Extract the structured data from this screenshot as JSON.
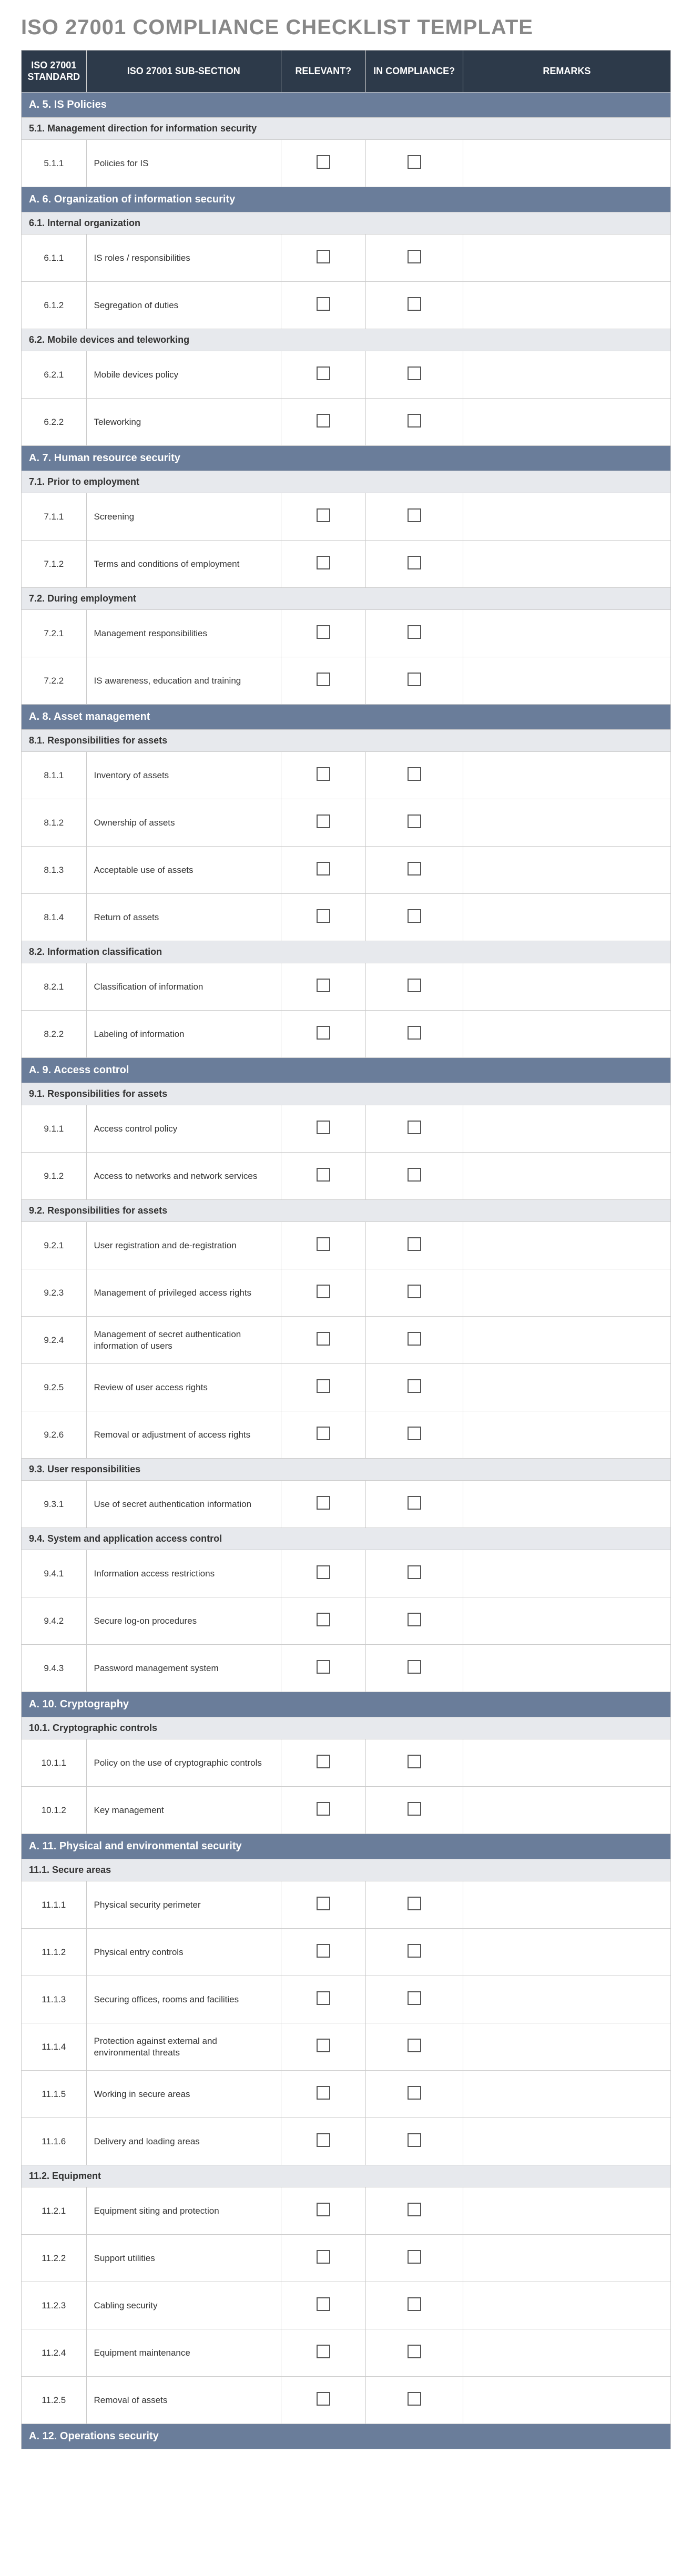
{
  "title": "ISO 27001 COMPLIANCE CHECKLIST TEMPLATE",
  "columns": {
    "std": "ISO 27001 STANDARD",
    "sub": "ISO 27001 SUB-SECTION",
    "rel": "RELEVANT?",
    "comp": "IN COMPLIANCE?",
    "rem": "REMARKS"
  },
  "colors": {
    "header_bg": "#2d3a4a",
    "section_bg": "#6a7d9a",
    "subsection_bg": "#e7e9ed",
    "title_color": "#888888",
    "border": "#cccccc"
  },
  "sections": [
    {
      "title": "A. 5. IS Policies",
      "subsections": [
        {
          "title": "5.1. Management direction for information security",
          "rows": [
            {
              "std": "5.1.1",
              "sub": "Policies for IS",
              "rem": ""
            }
          ]
        }
      ]
    },
    {
      "title": "A. 6. Organization of information security",
      "subsections": [
        {
          "title": "6.1. Internal organization",
          "rows": [
            {
              "std": "6.1.1",
              "sub": "IS roles / responsibilities",
              "rem": ""
            },
            {
              "std": "6.1.2",
              "sub": "Segregation of duties",
              "rem": ""
            }
          ]
        },
        {
          "title": "6.2. Mobile devices and teleworking",
          "rows": [
            {
              "std": "6.2.1",
              "sub": "Mobile devices policy",
              "rem": ""
            },
            {
              "std": "6.2.2",
              "sub": "Teleworking",
              "rem": ""
            }
          ]
        }
      ]
    },
    {
      "title": "A. 7. Human resource security",
      "subsections": [
        {
          "title": "7.1. Prior to employment",
          "rows": [
            {
              "std": "7.1.1",
              "sub": "Screening",
              "rem": ""
            },
            {
              "std": "7.1.2",
              "sub": "Terms and conditions of employment",
              "rem": ""
            }
          ]
        },
        {
          "title": "7.2. During employment",
          "rows": [
            {
              "std": "7.2.1",
              "sub": "Management responsibilities",
              "rem": ""
            },
            {
              "std": "7.2.2",
              "sub": "IS awareness, education and training",
              "rem": ""
            }
          ]
        }
      ]
    },
    {
      "title": "A. 8. Asset management",
      "subsections": [
        {
          "title": "8.1. Responsibilities for assets",
          "rows": [
            {
              "std": "8.1.1",
              "sub": "Inventory of assets",
              "rem": ""
            },
            {
              "std": "8.1.2",
              "sub": "Ownership of assets",
              "rem": ""
            },
            {
              "std": "8.1.3",
              "sub": "Acceptable use of assets",
              "rem": ""
            },
            {
              "std": "8.1.4",
              "sub": "Return of assets",
              "rem": ""
            }
          ]
        },
        {
          "title": "8.2. Information classification",
          "rows": [
            {
              "std": "8.2.1",
              "sub": "Classification of information",
              "rem": ""
            },
            {
              "std": "8.2.2",
              "sub": "Labeling of information",
              "rem": ""
            }
          ]
        }
      ]
    },
    {
      "title": "A. 9. Access control",
      "subsections": [
        {
          "title": "9.1. Responsibilities for assets",
          "rows": [
            {
              "std": "9.1.1",
              "sub": "Access control policy",
              "rem": ""
            },
            {
              "std": "9.1.2",
              "sub": "Access to networks and network services",
              "rem": ""
            }
          ]
        },
        {
          "title": "9.2. Responsibilities for assets",
          "rows": [
            {
              "std": "9.2.1",
              "sub": "User registration and de-registration",
              "rem": ""
            },
            {
              "std": "9.2.3",
              "sub": "Management of privileged access rights",
              "rem": ""
            },
            {
              "std": "9.2.4",
              "sub": "Management of secret authentication information of users",
              "rem": ""
            },
            {
              "std": "9.2.5",
              "sub": "Review of user access rights",
              "rem": ""
            },
            {
              "std": "9.2.6",
              "sub": "Removal or adjustment of access rights",
              "rem": ""
            }
          ]
        },
        {
          "title": "9.3. User responsibilities",
          "rows": [
            {
              "std": "9.3.1",
              "sub": "Use of secret authentication information",
              "rem": ""
            }
          ]
        },
        {
          "title": "9.4. System and application access control",
          "rows": [
            {
              "std": "9.4.1",
              "sub": "Information access restrictions",
              "rem": ""
            },
            {
              "std": "9.4.2",
              "sub": "Secure log-on procedures",
              "rem": ""
            },
            {
              "std": "9.4.3",
              "sub": "Password management system",
              "rem": ""
            }
          ]
        }
      ]
    },
    {
      "title": "A. 10. Cryptography",
      "subsections": [
        {
          "title": "10.1. Cryptographic controls",
          "rows": [
            {
              "std": "10.1.1",
              "sub": "Policy on the use of cryptographic controls",
              "rem": ""
            },
            {
              "std": "10.1.2",
              "sub": "Key management",
              "rem": ""
            }
          ]
        }
      ]
    },
    {
      "title": "A. 11. Physical and environmental security",
      "subsections": [
        {
          "title": "11.1. Secure areas",
          "rows": [
            {
              "std": "11.1.1",
              "sub": "Physical security perimeter",
              "rem": ""
            },
            {
              "std": "11.1.2",
              "sub": "Physical entry controls",
              "rem": ""
            },
            {
              "std": "11.1.3",
              "sub": "Securing offices, rooms and facilities",
              "rem": ""
            },
            {
              "std": "11.1.4",
              "sub": "Protection against external and environmental threats",
              "rem": ""
            },
            {
              "std": "11.1.5",
              "sub": "Working in secure areas",
              "rem": ""
            },
            {
              "std": "11.1.6",
              "sub": "Delivery and loading areas",
              "rem": ""
            }
          ]
        },
        {
          "title": "11.2. Equipment",
          "rows": [
            {
              "std": "11.2.1",
              "sub": "Equipment siting and protection",
              "rem": ""
            },
            {
              "std": "11.2.2",
              "sub": "Support utilities",
              "rem": ""
            },
            {
              "std": "11.2.3",
              "sub": "Cabling security",
              "rem": ""
            },
            {
              "std": "11.2.4",
              "sub": "Equipment maintenance",
              "rem": ""
            },
            {
              "std": "11.2.5",
              "sub": "Removal of assets",
              "rem": ""
            }
          ]
        }
      ]
    },
    {
      "title": "A. 12. Operations security",
      "subsections": []
    }
  ]
}
